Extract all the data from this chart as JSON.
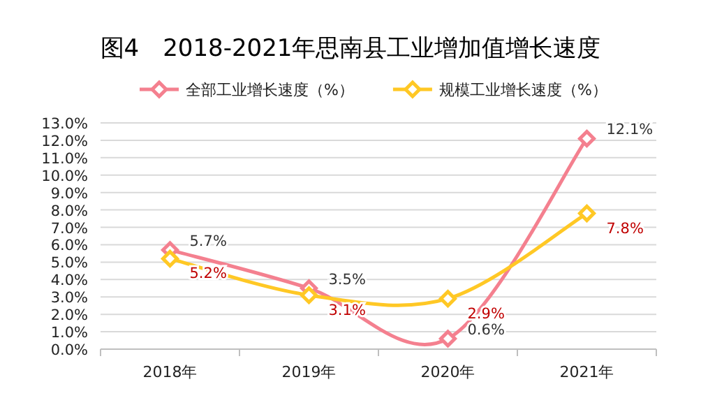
{
  "chart_data": {
    "type": "line",
    "title": "图4　2018-2021年思南县工业增加值增长速度",
    "categories": [
      "2018年",
      "2019年",
      "2020年",
      "2021年"
    ],
    "series": [
      {
        "name": "全部工业增长速度（%）",
        "color": "#f4808f",
        "values": [
          5.7,
          3.5,
          0.6,
          12.1
        ],
        "value_labels": [
          "5.7%",
          "3.5%",
          "0.6%",
          "12.1%"
        ]
      },
      {
        "name": "规模工业增长速度（%）",
        "color": "#ffc825",
        "values": [
          5.2,
          3.1,
          2.9,
          7.8
        ],
        "value_labels": [
          "5.2%",
          "3.1%",
          "2.9%",
          "7.8%"
        ]
      }
    ],
    "ylim": [
      0,
      13
    ],
    "yticks": [
      {
        "value": 0,
        "label": "0.0%"
      },
      {
        "value": 1,
        "label": "1.0%"
      },
      {
        "value": 2,
        "label": "2.0%"
      },
      {
        "value": 3,
        "label": "3.0%"
      },
      {
        "value": 4,
        "label": "4.0%"
      },
      {
        "value": 5,
        "label": "5.0%"
      },
      {
        "value": 6,
        "label": "6.0%"
      },
      {
        "value": 7,
        "label": "7.0%"
      },
      {
        "value": 8,
        "label": "8.0%"
      },
      {
        "value": 9,
        "label": "9.0%"
      },
      {
        "value": 10,
        "label": "10.0%"
      },
      {
        "value": 11,
        "label": "11.0%"
      },
      {
        "value": 12,
        "label": "12.0%"
      },
      {
        "value": 13,
        "label": "13.0%"
      }
    ],
    "grid": "y",
    "legend": "top",
    "marker": "diamond",
    "line_style": "solid"
  }
}
